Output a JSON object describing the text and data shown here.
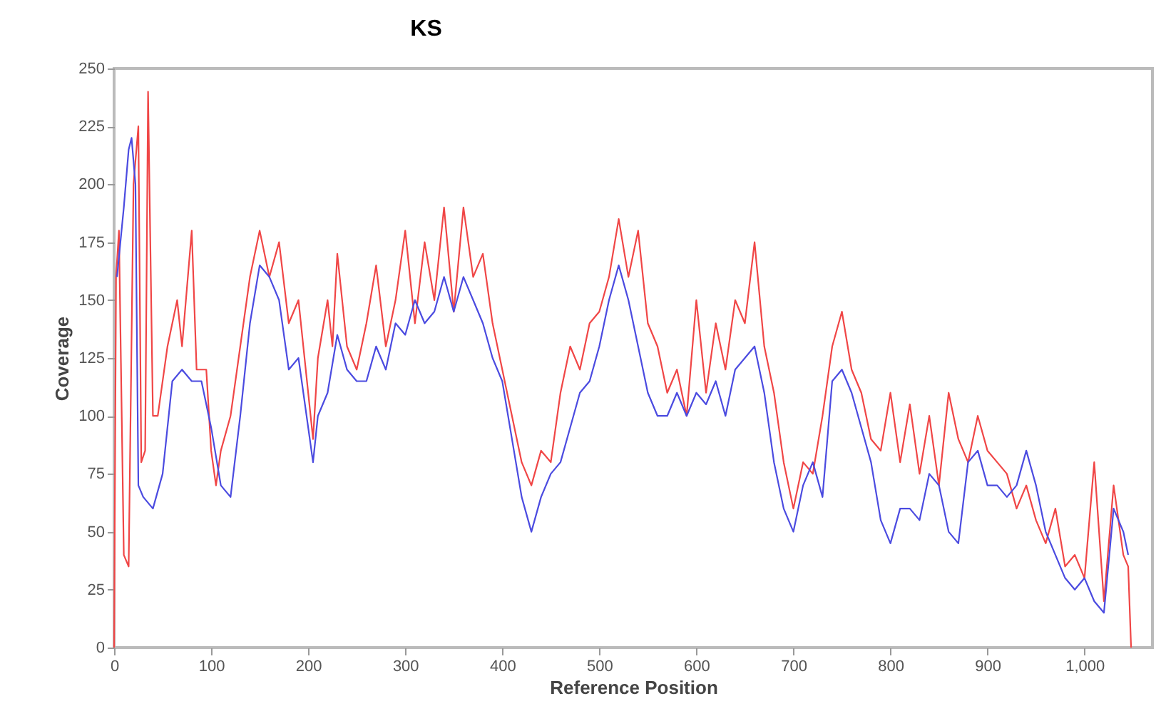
{
  "chart_data": {
    "type": "line",
    "title": "KS",
    "xlabel": "Reference Position",
    "ylabel": "Coverage",
    "xlim": [
      0,
      1070
    ],
    "ylim": [
      0,
      250
    ],
    "xticks": [
      0,
      100,
      200,
      300,
      400,
      500,
      600,
      700,
      800,
      900,
      {
        "value": 1000,
        "label": "1,000"
      }
    ],
    "yticks": [
      0,
      25,
      50,
      75,
      100,
      125,
      150,
      175,
      200,
      225,
      250
    ],
    "grid": false,
    "legend": false,
    "marker": "none",
    "line_style": "solid",
    "series": [
      {
        "color": "#f04646",
        "x": [
          0,
          2,
          5,
          10,
          15,
          20,
          25,
          28,
          32,
          35,
          40,
          45,
          55,
          65,
          70,
          80,
          85,
          95,
          100,
          105,
          110,
          120,
          130,
          140,
          150,
          160,
          170,
          180,
          190,
          200,
          205,
          210,
          220,
          225,
          230,
          240,
          250,
          260,
          270,
          280,
          290,
          300,
          310,
          320,
          330,
          340,
          350,
          360,
          370,
          380,
          390,
          400,
          410,
          420,
          430,
          440,
          450,
          460,
          470,
          480,
          490,
          500,
          510,
          520,
          530,
          540,
          550,
          560,
          570,
          580,
          590,
          600,
          610,
          620,
          630,
          640,
          650,
          660,
          670,
          680,
          690,
          700,
          710,
          720,
          730,
          740,
          750,
          760,
          770,
          780,
          790,
          800,
          810,
          820,
          830,
          840,
          850,
          860,
          870,
          880,
          890,
          900,
          910,
          920,
          930,
          940,
          950,
          960,
          970,
          980,
          990,
          1000,
          1010,
          1020,
          1030,
          1040,
          1045,
          1048
        ],
        "values": [
          0,
          160,
          180,
          40,
          35,
          200,
          225,
          80,
          85,
          240,
          100,
          100,
          130,
          150,
          130,
          180,
          120,
          120,
          85,
          70,
          85,
          100,
          130,
          160,
          180,
          160,
          175,
          140,
          150,
          110,
          90,
          125,
          150,
          130,
          170,
          130,
          120,
          140,
          165,
          130,
          150,
          180,
          140,
          175,
          150,
          190,
          145,
          190,
          160,
          170,
          140,
          120,
          100,
          80,
          70,
          85,
          80,
          110,
          130,
          120,
          140,
          145,
          160,
          185,
          160,
          180,
          140,
          130,
          110,
          120,
          100,
          150,
          110,
          140,
          120,
          150,
          140,
          175,
          130,
          110,
          80,
          60,
          80,
          75,
          100,
          130,
          145,
          120,
          110,
          90,
          85,
          110,
          80,
          105,
          75,
          100,
          70,
          110,
          90,
          80,
          100,
          85,
          80,
          75,
          60,
          70,
          55,
          45,
          60,
          35,
          40,
          30,
          80,
          20,
          70,
          40,
          35,
          0
        ]
      },
      {
        "color": "#4b4be0",
        "x": [
          3,
          10,
          15,
          18,
          22,
          25,
          30,
          40,
          50,
          60,
          70,
          80,
          90,
          100,
          110,
          120,
          130,
          140,
          150,
          160,
          170,
          180,
          190,
          200,
          205,
          210,
          220,
          230,
          240,
          250,
          260,
          270,
          280,
          290,
          300,
          310,
          320,
          330,
          340,
          350,
          360,
          370,
          380,
          390,
          400,
          410,
          420,
          430,
          440,
          450,
          460,
          470,
          480,
          490,
          500,
          510,
          520,
          530,
          540,
          550,
          560,
          570,
          580,
          590,
          600,
          610,
          620,
          630,
          640,
          650,
          660,
          670,
          680,
          690,
          700,
          710,
          720,
          730,
          740,
          750,
          760,
          770,
          780,
          790,
          800,
          810,
          820,
          830,
          840,
          850,
          860,
          870,
          880,
          890,
          900,
          910,
          920,
          930,
          940,
          950,
          960,
          970,
          980,
          990,
          1000,
          1010,
          1020,
          1030,
          1040,
          1045
        ],
        "values": [
          160,
          190,
          215,
          220,
          200,
          70,
          65,
          60,
          75,
          115,
          120,
          115,
          115,
          95,
          70,
          65,
          100,
          140,
          165,
          160,
          150,
          120,
          125,
          95,
          80,
          100,
          110,
          135,
          120,
          115,
          115,
          130,
          120,
          140,
          135,
          150,
          140,
          145,
          160,
          145,
          160,
          150,
          140,
          125,
          115,
          90,
          65,
          50,
          65,
          75,
          80,
          95,
          110,
          115,
          130,
          150,
          165,
          150,
          130,
          110,
          100,
          100,
          110,
          100,
          110,
          105,
          115,
          100,
          120,
          125,
          130,
          110,
          80,
          60,
          50,
          70,
          80,
          65,
          115,
          120,
          110,
          95,
          80,
          55,
          45,
          60,
          60,
          55,
          75,
          70,
          50,
          45,
          80,
          85,
          70,
          70,
          65,
          70,
          85,
          70,
          50,
          40,
          30,
          25,
          30,
          20,
          15,
          60,
          50,
          40
        ]
      }
    ]
  }
}
